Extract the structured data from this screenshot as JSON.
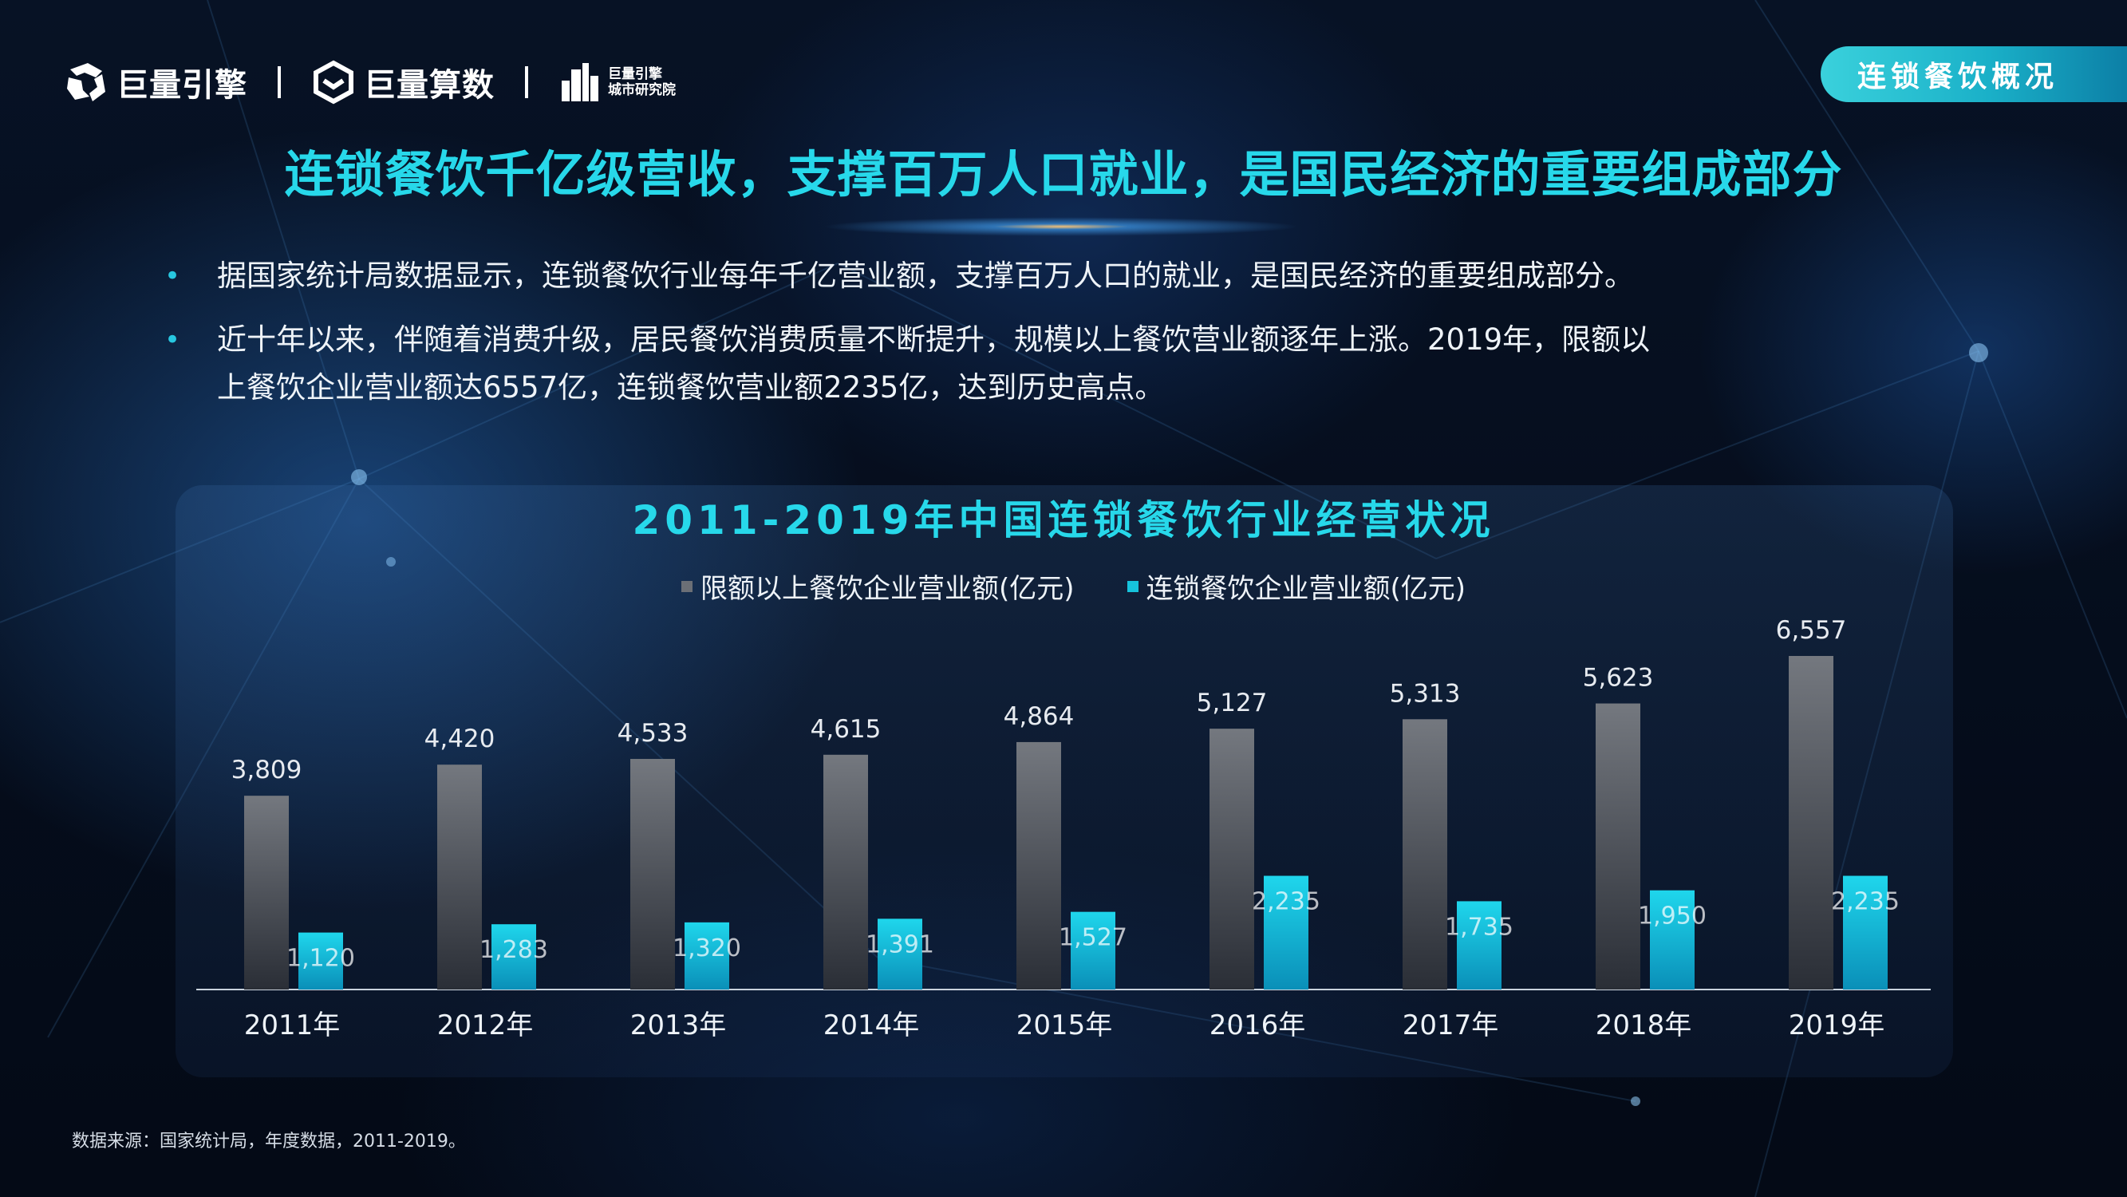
{
  "header": {
    "logos": [
      {
        "name": "巨量引擎"
      },
      {
        "name": "巨量算数"
      },
      {
        "line1": "巨量引擎",
        "line2": "城市研究院"
      }
    ],
    "section_tag": "连锁餐饮概况"
  },
  "title": "连锁餐饮千亿级营收，支撑百万人口就业，是国民经济的重要组成部分",
  "bullets": [
    {
      "text": "据国家统计局数据显示，连锁餐饮行业每年千亿营业额，支撑百万人口的就业，是国民经济的重要组成部分。"
    },
    {
      "line1": "近十年以来，伴随着消费升级，居民餐饮消费质量不断提升，规模以上餐饮营业额逐年上涨。2019年，限额以",
      "line2": "上餐饮企业营业额达6557亿，连锁餐饮营业额2235亿，达到历史高点。"
    }
  ],
  "chart_data": {
    "type": "bar",
    "title": "2011-2019年中国连锁餐饮行业经营状况",
    "categories": [
      "2011年",
      "2012年",
      "2013年",
      "2014年",
      "2015年",
      "2016年",
      "2017年",
      "2018年",
      "2019年"
    ],
    "series": [
      {
        "name": "限额以上餐饮企业营业额(亿元)",
        "color": "#6b6f76",
        "values": [
          3809,
          4420,
          4533,
          4615,
          4864,
          5127,
          5313,
          5623,
          6557
        ],
        "labels": [
          "3,809",
          "4,420",
          "4,533",
          "4,615",
          "4,864",
          "5,127",
          "5,313",
          "5,623",
          "6,557"
        ]
      },
      {
        "name": "连锁餐饮企业营业额(亿元)",
        "color": "#16c3dc",
        "values": [
          1120,
          1283,
          1320,
          1391,
          1527,
          2235,
          1735,
          1950,
          2235
        ],
        "labels": [
          "1,120",
          "1,283",
          "1,320",
          "1,391",
          "1,527",
          "2,235",
          "1,735",
          "1,950",
          "2,235"
        ]
      }
    ],
    "ylim": [
      0,
      6557
    ],
    "grid": false,
    "legend_position": "top-center"
  },
  "footnote": "数据来源：国家统计局，年度数据，2011-2019。"
}
